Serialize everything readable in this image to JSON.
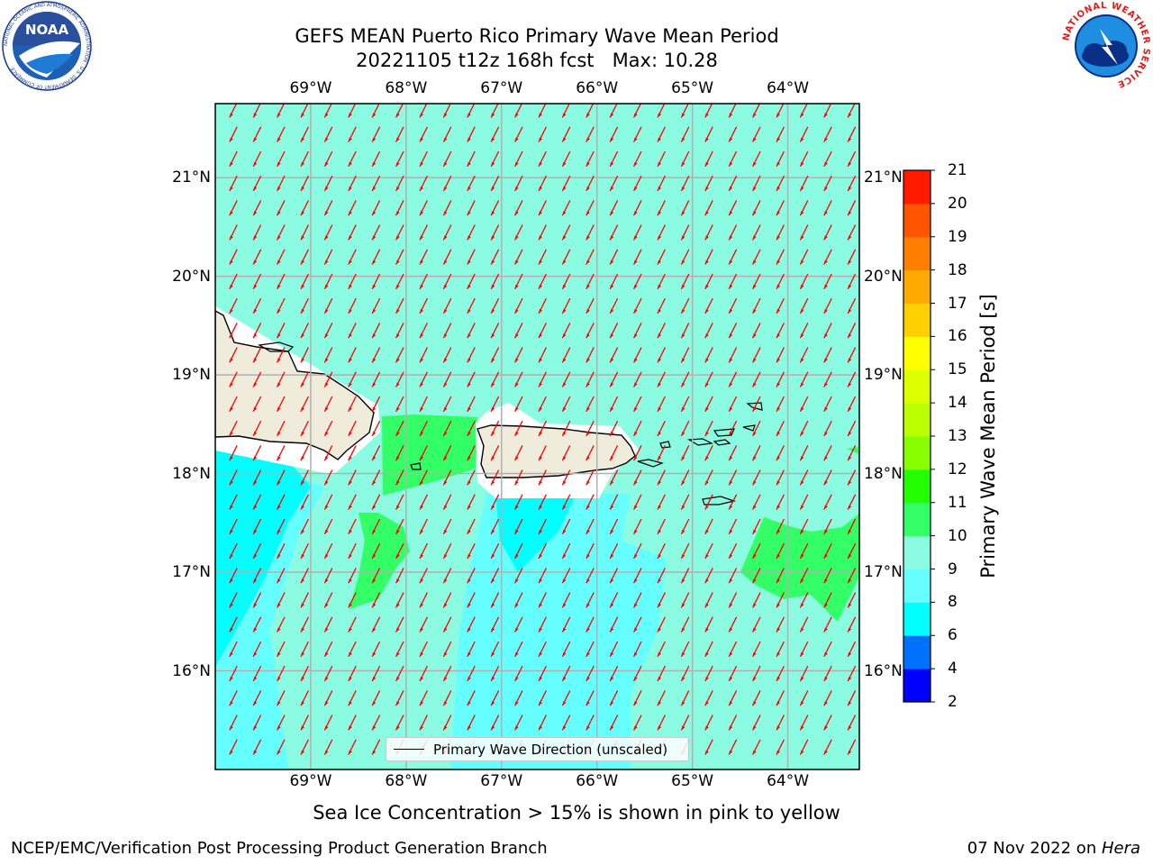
{
  "title": {
    "line1": "GEFS MEAN Puerto Rico Primary Wave Mean Period",
    "line2": "20221105 t12z 168h fcst   Max: 10.28"
  },
  "logos": {
    "left": {
      "name": "noaa-logo",
      "text": "NOAA",
      "ring_text": "NATIONAL OCEANIC AND ATMOSPHERIC ADMINISTRATION · U.S. DEPARTMENT OF COMMERCE"
    },
    "right": {
      "name": "nws-logo",
      "ring_text": "NATIONAL WEATHER SERVICE"
    }
  },
  "map": {
    "lon_labels": [
      "69°W",
      "68°W",
      "67°W",
      "66°W",
      "65°W",
      "64°W"
    ],
    "lon_values": [
      -69,
      -68,
      -67,
      -66,
      -65,
      -64
    ],
    "lat_labels": [
      "21°N",
      "20°N",
      "19°N",
      "18°N",
      "17°N",
      "16°N"
    ],
    "lat_values": [
      21,
      20,
      19,
      18,
      17,
      16
    ],
    "extent": {
      "lon_min": -70.0,
      "lon_max": -63.25,
      "lat_min": 15.0,
      "lat_max": 21.75
    },
    "background_color": "#8bfbe2",
    "land_color": "#efecdc",
    "arrow_color": "#ff0000",
    "arrow_direction": "toward southwest"
  },
  "legend": {
    "label": "Primary Wave Direction (unscaled)"
  },
  "colorbar": {
    "label": "Primary Wave Mean Period [s]",
    "ticks": [
      "2",
      "4",
      "6",
      "8",
      "9",
      "10",
      "11",
      "12",
      "13",
      "14",
      "15",
      "16",
      "17",
      "18",
      "19",
      "20",
      "21"
    ],
    "colors": [
      "#0000ff",
      "#0070ff",
      "#00ffff",
      "#66ffff",
      "#8bfbe2",
      "#33ff66",
      "#22ff00",
      "#88ff00",
      "#bbff00",
      "#ddff00",
      "#ffff00",
      "#ffd000",
      "#ffaa00",
      "#ff8000",
      "#ff5500",
      "#ff1a00"
    ]
  },
  "footer": {
    "note": "Sea Ice Concentration > 15% is shown in pink to yellow",
    "left": "NCEP/EMC/Verification Post Processing Product Generation Branch",
    "right_date": "07 Nov 2022 on ",
    "right_machine": "Hera"
  }
}
